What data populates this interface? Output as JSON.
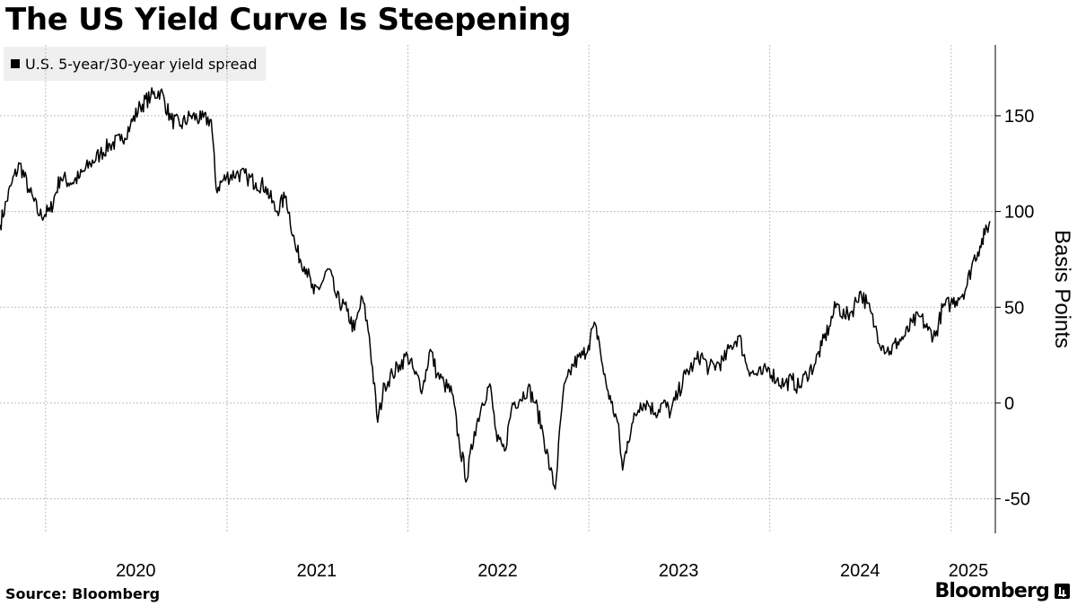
{
  "chart_data": {
    "type": "line",
    "title": "The US Yield Curve Is Steepening",
    "ylabel": "Basis Points",
    "ylim": [
      -68,
      187
    ],
    "yticks": [
      -50,
      0,
      50,
      100,
      150
    ],
    "xticks": [
      "2020",
      "2021",
      "2022",
      "2023",
      "2024",
      "2025"
    ],
    "xrange": [
      "2019-10-01",
      "2025-03-31"
    ],
    "grid": true,
    "legend_position": "top-left",
    "series": [
      {
        "name": "U.S. 5-year/30-year yield spread",
        "color": "#000000",
        "points": [
          [
            "2019-10-01",
            93
          ],
          [
            "2019-10-25",
            115
          ],
          [
            "2019-11-10",
            125
          ],
          [
            "2019-11-30",
            110
          ],
          [
            "2019-12-20",
            98
          ],
          [
            "2020-01-10",
            100
          ],
          [
            "2020-01-31",
            118
          ],
          [
            "2020-02-20",
            115
          ],
          [
            "2020-03-10",
            118
          ],
          [
            "2020-03-31",
            125
          ],
          [
            "2020-04-20",
            130
          ],
          [
            "2020-05-10",
            135
          ],
          [
            "2020-05-31",
            137
          ],
          [
            "2020-06-20",
            145
          ],
          [
            "2020-07-10",
            155
          ],
          [
            "2020-07-31",
            160
          ],
          [
            "2020-08-20",
            163
          ],
          [
            "2020-09-10",
            148
          ],
          [
            "2020-09-30",
            145
          ],
          [
            "2020-10-20",
            150
          ],
          [
            "2020-11-10",
            148
          ],
          [
            "2020-11-30",
            148
          ],
          [
            "2020-12-10",
            112
          ],
          [
            "2020-12-31",
            118
          ],
          [
            "2021-01-20",
            120
          ],
          [
            "2021-02-10",
            118
          ],
          [
            "2021-02-28",
            115
          ],
          [
            "2021-03-20",
            113
          ],
          [
            "2021-04-10",
            100
          ],
          [
            "2021-04-30",
            108
          ],
          [
            "2021-05-20",
            80
          ],
          [
            "2021-06-10",
            70
          ],
          [
            "2021-06-25",
            57
          ],
          [
            "2021-07-10",
            62
          ],
          [
            "2021-07-25",
            70
          ],
          [
            "2021-08-10",
            55
          ],
          [
            "2021-08-31",
            48
          ],
          [
            "2021-09-15",
            38
          ],
          [
            "2021-10-01",
            55
          ],
          [
            "2021-10-15",
            35
          ],
          [
            "2021-11-01",
            -10
          ],
          [
            "2021-11-15",
            10
          ],
          [
            "2021-12-01",
            15
          ],
          [
            "2021-12-15",
            20
          ],
          [
            "2021-12-31",
            25
          ],
          [
            "2022-01-15",
            15
          ],
          [
            "2022-01-31",
            8
          ],
          [
            "2022-02-15",
            28
          ],
          [
            "2022-03-01",
            15
          ],
          [
            "2022-03-15",
            10
          ],
          [
            "2022-03-31",
            5
          ],
          [
            "2022-04-15",
            -22
          ],
          [
            "2022-04-30",
            -40
          ],
          [
            "2022-05-15",
            -15
          ],
          [
            "2022-05-31",
            0
          ],
          [
            "2022-06-15",
            10
          ],
          [
            "2022-06-30",
            -20
          ],
          [
            "2022-07-15",
            -25
          ],
          [
            "2022-07-31",
            0
          ],
          [
            "2022-08-15",
            2
          ],
          [
            "2022-08-31",
            8
          ],
          [
            "2022-09-15",
            0
          ],
          [
            "2022-09-30",
            -15
          ],
          [
            "2022-10-15",
            -35
          ],
          [
            "2022-10-25",
            -45
          ],
          [
            "2022-11-10",
            5
          ],
          [
            "2022-11-30",
            20
          ],
          [
            "2022-12-20",
            25
          ],
          [
            "2022-12-31",
            30
          ],
          [
            "2023-01-10",
            40
          ],
          [
            "2023-01-20",
            35
          ],
          [
            "2023-01-31",
            15
          ],
          [
            "2023-02-15",
            0
          ],
          [
            "2023-02-28",
            -10
          ],
          [
            "2023-03-10",
            -35
          ],
          [
            "2023-03-20",
            -20
          ],
          [
            "2023-03-31",
            -10
          ],
          [
            "2023-04-15",
            0
          ],
          [
            "2023-04-30",
            0
          ],
          [
            "2023-05-15",
            -5
          ],
          [
            "2023-05-31",
            0
          ],
          [
            "2023-06-15",
            -5
          ],
          [
            "2023-06-30",
            5
          ],
          [
            "2023-07-15",
            15
          ],
          [
            "2023-07-31",
            20
          ],
          [
            "2023-08-15",
            25
          ],
          [
            "2023-08-31",
            18
          ],
          [
            "2023-09-15",
            20
          ],
          [
            "2023-09-30",
            22
          ],
          [
            "2023-10-15",
            30
          ],
          [
            "2023-10-31",
            35
          ],
          [
            "2023-11-15",
            20
          ],
          [
            "2023-11-30",
            15
          ],
          [
            "2023-12-15",
            15
          ],
          [
            "2023-12-31",
            18
          ],
          [
            "2024-01-15",
            12
          ],
          [
            "2024-01-31",
            10
          ],
          [
            "2024-02-15",
            12
          ],
          [
            "2024-02-29",
            8
          ],
          [
            "2024-03-15",
            15
          ],
          [
            "2024-03-31",
            20
          ],
          [
            "2024-04-15",
            30
          ],
          [
            "2024-04-30",
            40
          ],
          [
            "2024-05-15",
            52
          ],
          [
            "2024-05-31",
            45
          ],
          [
            "2024-06-15",
            48
          ],
          [
            "2024-06-30",
            58
          ],
          [
            "2024-07-15",
            52
          ],
          [
            "2024-07-31",
            40
          ],
          [
            "2024-08-15",
            30
          ],
          [
            "2024-08-31",
            27
          ],
          [
            "2024-09-15",
            32
          ],
          [
            "2024-09-30",
            35
          ],
          [
            "2024-10-15",
            42
          ],
          [
            "2024-10-31",
            45
          ],
          [
            "2024-11-15",
            38
          ],
          [
            "2024-11-30",
            35
          ],
          [
            "2024-12-15",
            50
          ],
          [
            "2024-12-31",
            52
          ],
          [
            "2025-01-15",
            55
          ],
          [
            "2025-01-31",
            60
          ],
          [
            "2025-02-15",
            75
          ],
          [
            "2025-02-28",
            82
          ],
          [
            "2025-03-10",
            88
          ],
          [
            "2025-03-20",
            95
          ]
        ]
      }
    ]
  },
  "footer": {
    "source": "Source: Bloomberg",
    "brand": "Bloomberg"
  }
}
